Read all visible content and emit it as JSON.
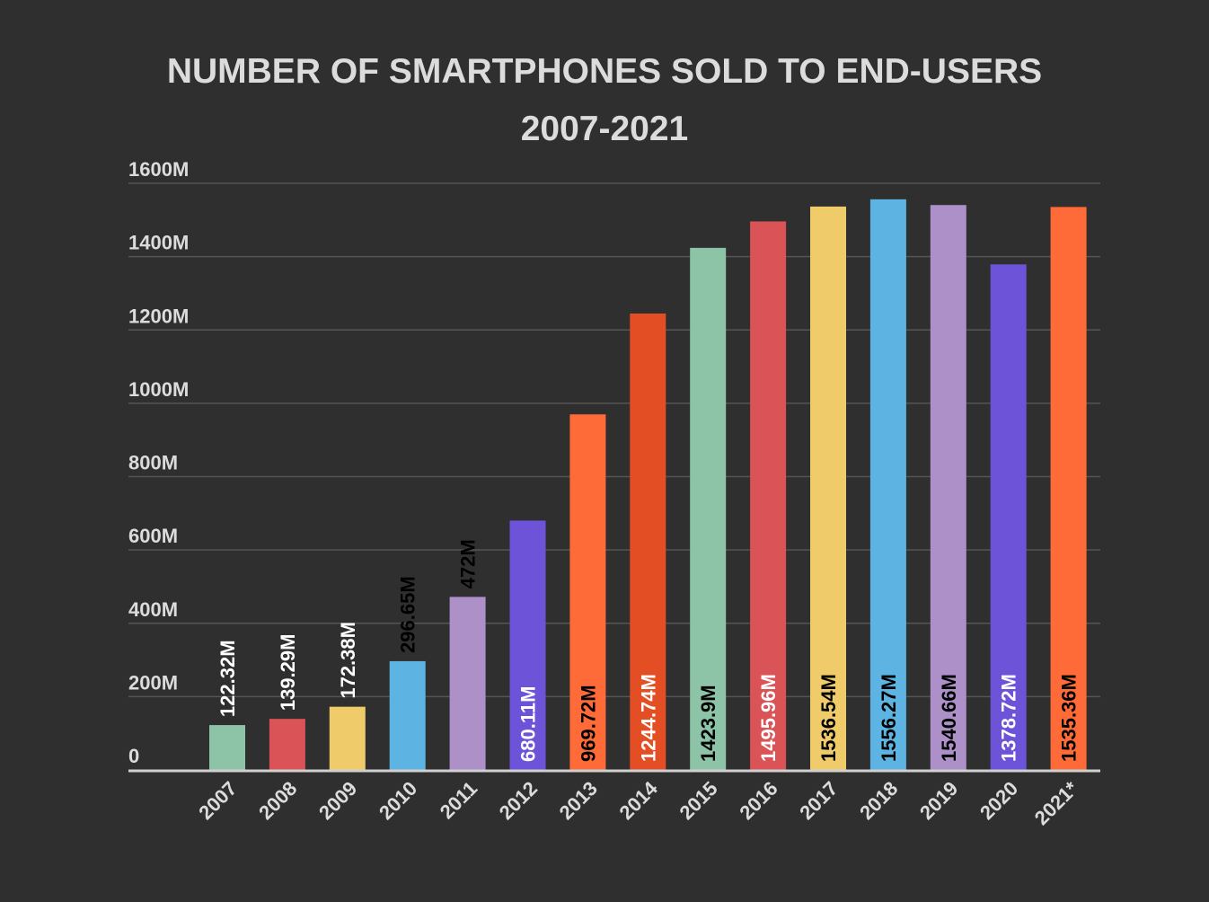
{
  "chart_data": {
    "type": "bar",
    "title": "NUMBER OF SMARTPHONES SOLD TO END-USERS",
    "subtitle": "2007-2021",
    "xlabel": "",
    "ylabel": "",
    "ylim": [
      0,
      1600
    ],
    "grid": true,
    "legend": "none",
    "yticks": [
      "0",
      "200M",
      "400M",
      "600M",
      "800M",
      "1000M",
      "1200M",
      "1400M",
      "1600M"
    ],
    "ytick_values": [
      0,
      200,
      400,
      600,
      800,
      1000,
      1200,
      1400,
      1600
    ],
    "categories": [
      "2007",
      "2008",
      "2009",
      "2010",
      "2011",
      "2012",
      "2013",
      "2014",
      "2015",
      "2016",
      "2017",
      "2018",
      "2019",
      "2020",
      "2021*"
    ],
    "values": [
      122.32,
      139.29,
      172.38,
      296.65,
      472,
      680.11,
      969.72,
      1244.74,
      1423.9,
      1495.96,
      1536.54,
      1556.27,
      1540.66,
      1378.72,
      1535.36
    ],
    "labels": [
      "122.32M",
      "139.29M",
      "172.38M",
      "296.65M",
      "472M",
      "680.11M",
      "969.72M",
      "1244.74M",
      "1423.9M",
      "1495.96M",
      "1536.54M",
      "1556.27M",
      "1540.66M",
      "1378.72M",
      "1535.36M"
    ],
    "colors": [
      "#8dc3a7",
      "#d95357",
      "#efcb6a",
      "#5db4e3",
      "#ac90c7",
      "#6c53d8",
      "#fe6a38",
      "#e34e24",
      "#8dc3a7",
      "#d95357",
      "#efcb6a",
      "#5db4e3",
      "#ac90c7",
      "#6c53d8",
      "#fe6a38"
    ],
    "label_colors": [
      "#ffffff",
      "#ffffff",
      "#ffffff",
      "#000000",
      "#000000",
      "#ffffff",
      "#000000",
      "#ffffff",
      "#000000",
      "#ffffff",
      "#000000",
      "#000000",
      "#000000",
      "#ffffff",
      "#000000"
    ],
    "background": "#2f2f2f",
    "text_color": "#dcdcdc"
  }
}
